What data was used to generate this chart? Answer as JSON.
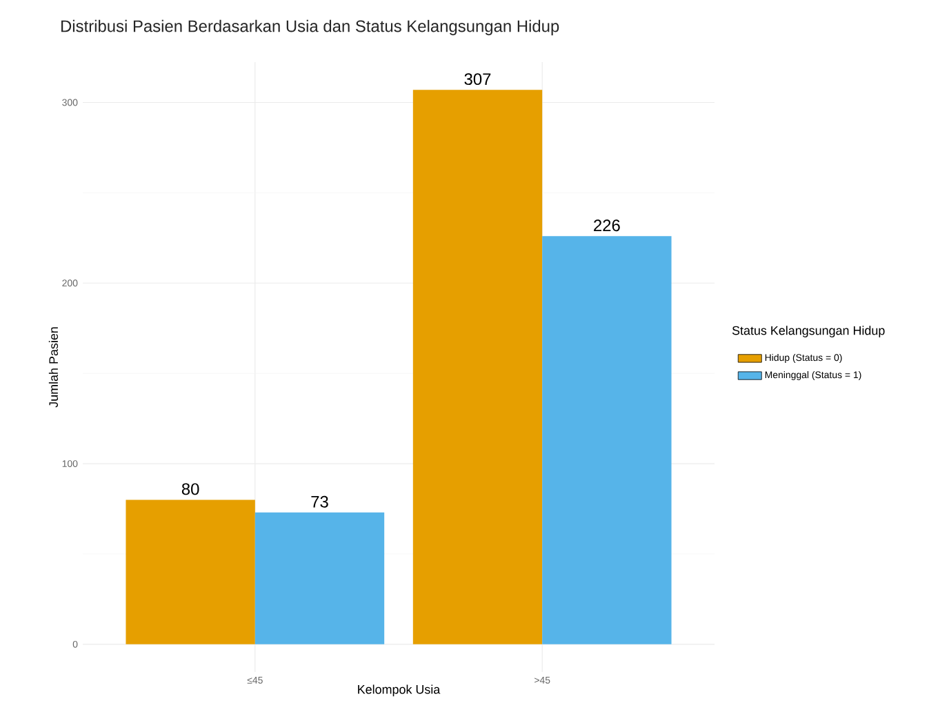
{
  "chart_data": {
    "type": "bar",
    "title": "Distribusi Pasien Berdasarkan Usia dan Status Kelangsungan Hidup",
    "xlabel": "Kelompok Usia",
    "ylabel": "Jumlah Pasien",
    "legend_title": "Status Kelangsungan Hidup",
    "categories": [
      "≤45",
      ">45"
    ],
    "series": [
      {
        "name": "Hidup (Status = 0)",
        "color": "#e69f00",
        "values": [
          80,
          307
        ]
      },
      {
        "name": "Meninggal (Status = 1)",
        "color": "#56b4e9",
        "values": [
          73,
          226
        ]
      }
    ],
    "ylim": [
      -15.35,
      322.35
    ],
    "yticks": [
      0,
      100,
      200,
      300
    ],
    "grid": true,
    "legend": "right",
    "data_labels": true
  }
}
